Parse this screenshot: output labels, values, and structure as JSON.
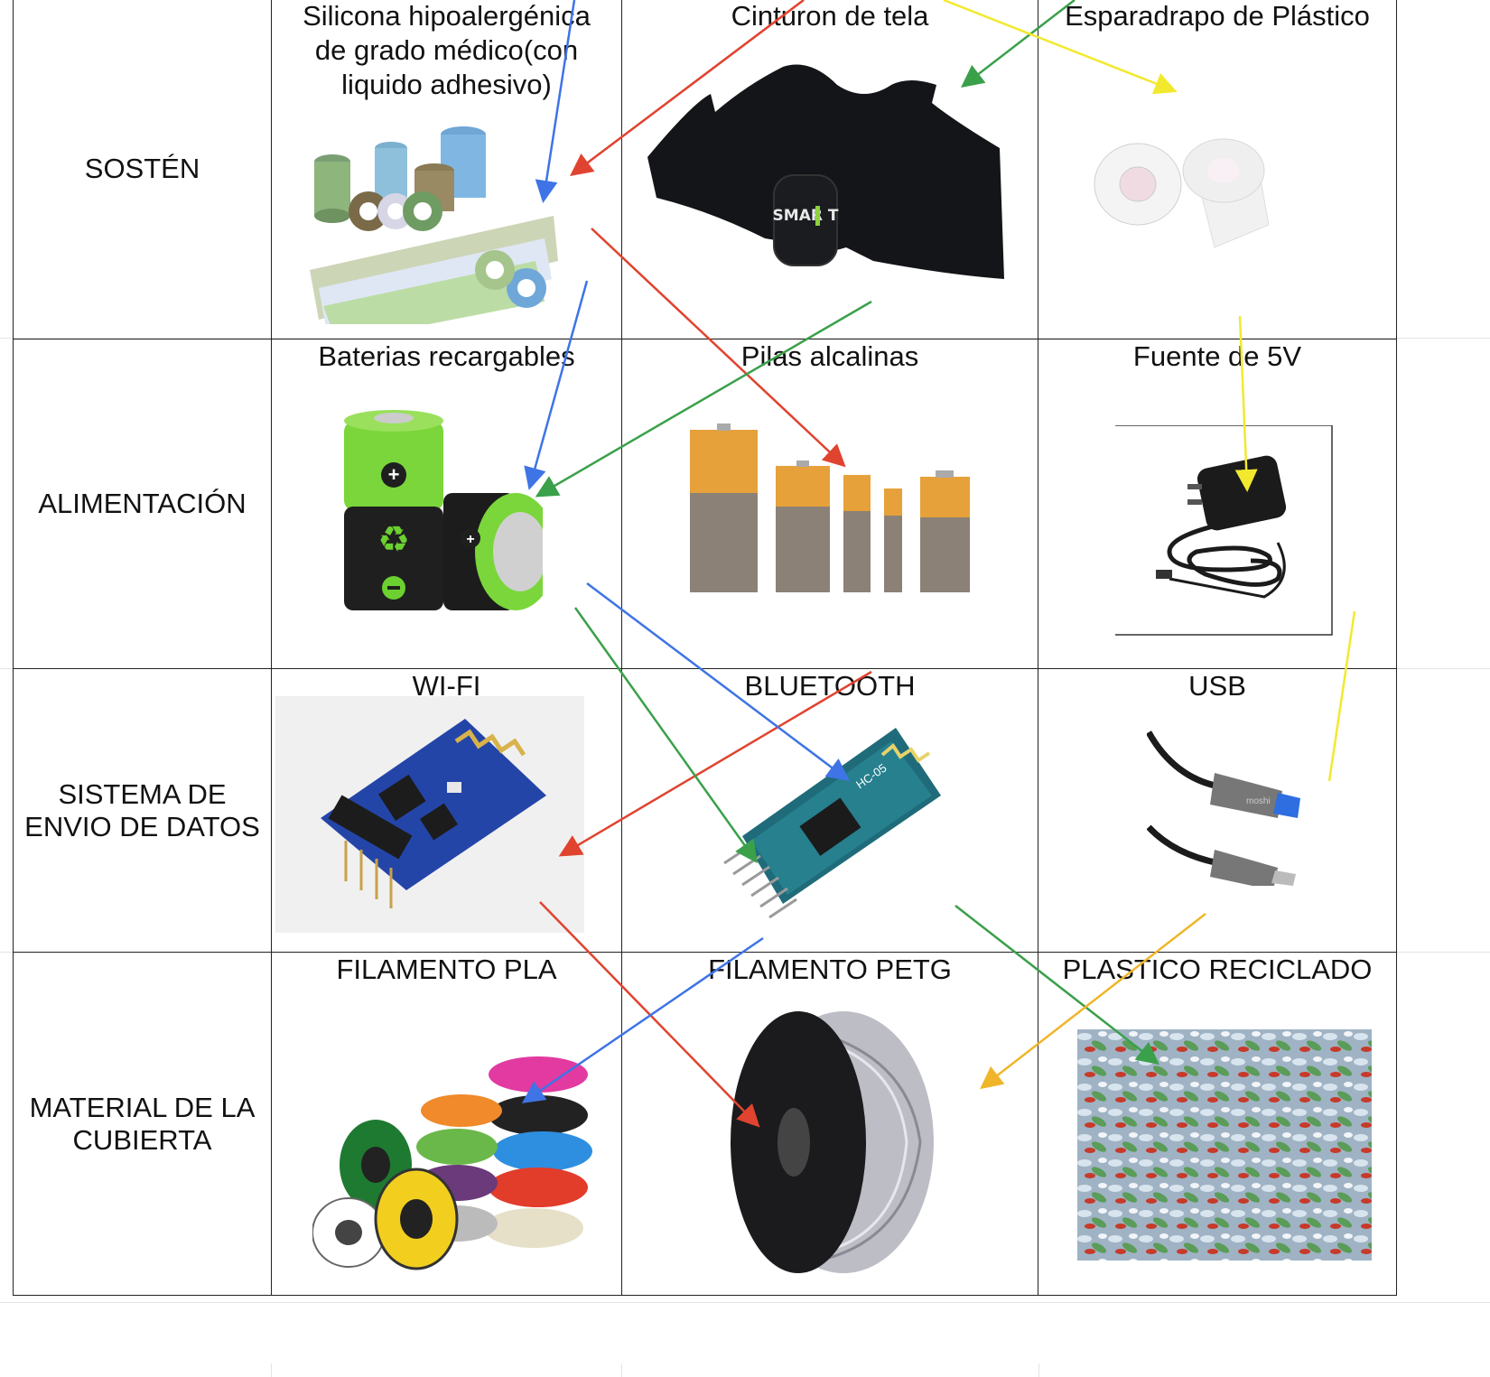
{
  "rows": [
    {
      "label": "SOSTÉN",
      "options": [
        "Silicona hipoalergénica de grado médico(con liquido adhesivo)",
        "Cinturon de tela",
        "Esparadrapo de Plástico"
      ]
    },
    {
      "label": "ALIMENTACIÓN",
      "options": [
        "Baterias recargables",
        "Pilas alcalinas",
        "Fuente de 5V"
      ]
    },
    {
      "label": "SISTEMA DE ENVIO DE DATOS",
      "options": [
        "WI-FI",
        "BLUETOOTH",
        "USB"
      ]
    },
    {
      "label": "MATERIAL DE LA CUBIERTA",
      "options": [
        "FILAMENTO PLA",
        "FILAMENTO PETG",
        "PLASTICO RECICLADO"
      ]
    }
  ],
  "title_lines": {
    "silicona": [
      "Silicona hipoalergénica",
      "de grado médico(con",
      "liquido adhesivo)"
    ],
    "envio": [
      "SISTEMA DE",
      "ENVIO DE DATOS"
    ],
    "cubierta": [
      "MATERIAL DE LA",
      "CUBIERTA"
    ]
  },
  "product_text": {
    "belt_logo": "SMAR T",
    "hc05_chip": "HC-05",
    "usb_brand": "moshi"
  },
  "arrow_colors": {
    "red": "#e0432f",
    "blue": "#3e74e6",
    "green": "#3aa04a",
    "yellow": "#f2e92e",
    "orange": "#f0b529"
  },
  "icons": [
    "medical-tape-rolls",
    "chest-strap",
    "plastic-tape",
    "rechargeable-batteries",
    "alkaline-batteries",
    "power-adapter",
    "esp8266-module",
    "hc05-module",
    "usb-cable",
    "filament-spools",
    "petg-spool",
    "recycled-bottles"
  ]
}
